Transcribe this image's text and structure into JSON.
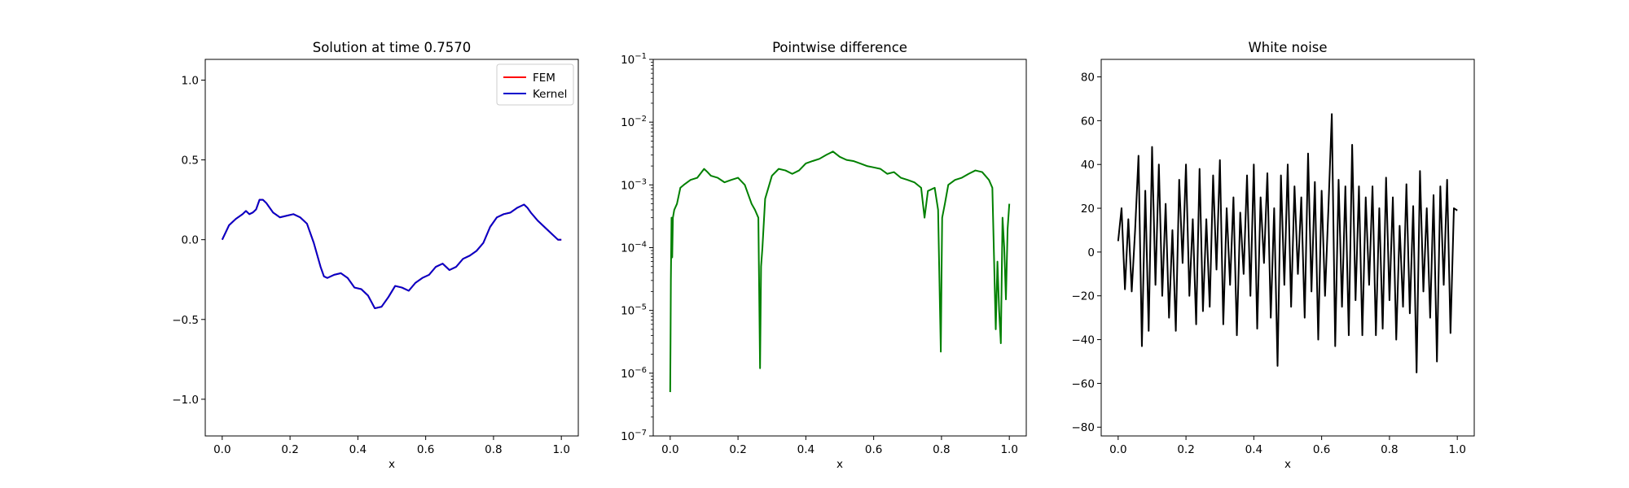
{
  "chart_data": [
    {
      "type": "line",
      "title": "Solution at time 0.7570",
      "xlabel": "x",
      "ylabel": "",
      "xlim": [
        -0.05,
        1.05
      ],
      "ylim": [
        -1.23,
        1.13
      ],
      "xticks": [
        0.0,
        0.2,
        0.4,
        0.6,
        0.8,
        1.0
      ],
      "xtick_labels": [
        "0.0",
        "0.2",
        "0.4",
        "0.6",
        "0.8",
        "1.0"
      ],
      "yticks": [
        -1.0,
        -0.5,
        0.0,
        0.5,
        1.0
      ],
      "ytick_labels": [
        "−1.0",
        "−0.5",
        "0.0",
        "0.5",
        "1.0"
      ],
      "legend_position": "top-right",
      "series": [
        {
          "name": "FEM",
          "color": "#ff0000",
          "x": [
            0.0,
            0.02,
            0.04,
            0.06,
            0.07,
            0.08,
            0.09,
            0.1,
            0.11,
            0.12,
            0.13,
            0.15,
            0.17,
            0.19,
            0.21,
            0.23,
            0.25,
            0.27,
            0.29,
            0.3,
            0.31,
            0.33,
            0.35,
            0.37,
            0.39,
            0.41,
            0.43,
            0.45,
            0.47,
            0.49,
            0.51,
            0.53,
            0.55,
            0.57,
            0.59,
            0.61,
            0.63,
            0.65,
            0.67,
            0.69,
            0.71,
            0.73,
            0.75,
            0.77,
            0.79,
            0.81,
            0.83,
            0.85,
            0.87,
            0.88,
            0.89,
            0.9,
            0.91,
            0.93,
            0.95,
            0.97,
            0.99,
            1.0
          ],
          "y": [
            0.0,
            0.09,
            0.13,
            0.16,
            0.18,
            0.16,
            0.17,
            0.19,
            0.25,
            0.25,
            0.23,
            0.17,
            0.14,
            0.15,
            0.16,
            0.14,
            0.1,
            -0.02,
            -0.17,
            -0.23,
            -0.24,
            -0.22,
            -0.21,
            -0.24,
            -0.3,
            -0.31,
            -0.35,
            -0.43,
            -0.42,
            -0.36,
            -0.29,
            -0.3,
            -0.32,
            -0.27,
            -0.24,
            -0.22,
            -0.17,
            -0.15,
            -0.19,
            -0.17,
            -0.12,
            -0.1,
            -0.07,
            -0.02,
            0.08,
            0.14,
            0.16,
            0.17,
            0.2,
            0.21,
            0.22,
            0.2,
            0.17,
            0.12,
            0.08,
            0.04,
            0.0,
            0.0
          ]
        },
        {
          "name": "Kernel",
          "color": "#0000cc",
          "x": [
            0.0,
            0.02,
            0.04,
            0.06,
            0.07,
            0.08,
            0.09,
            0.1,
            0.11,
            0.12,
            0.13,
            0.15,
            0.17,
            0.19,
            0.21,
            0.23,
            0.25,
            0.27,
            0.29,
            0.3,
            0.31,
            0.33,
            0.35,
            0.37,
            0.39,
            0.41,
            0.43,
            0.45,
            0.47,
            0.49,
            0.51,
            0.53,
            0.55,
            0.57,
            0.59,
            0.61,
            0.63,
            0.65,
            0.67,
            0.69,
            0.71,
            0.73,
            0.75,
            0.77,
            0.79,
            0.81,
            0.83,
            0.85,
            0.87,
            0.88,
            0.89,
            0.9,
            0.91,
            0.93,
            0.95,
            0.97,
            0.99,
            1.0
          ],
          "y": [
            0.0,
            0.09,
            0.13,
            0.16,
            0.18,
            0.16,
            0.17,
            0.19,
            0.25,
            0.25,
            0.23,
            0.17,
            0.14,
            0.15,
            0.16,
            0.14,
            0.1,
            -0.02,
            -0.17,
            -0.23,
            -0.24,
            -0.22,
            -0.21,
            -0.24,
            -0.3,
            -0.31,
            -0.35,
            -0.43,
            -0.42,
            -0.36,
            -0.29,
            -0.3,
            -0.32,
            -0.27,
            -0.24,
            -0.22,
            -0.17,
            -0.15,
            -0.19,
            -0.17,
            -0.12,
            -0.1,
            -0.07,
            -0.02,
            0.08,
            0.14,
            0.16,
            0.17,
            0.2,
            0.21,
            0.22,
            0.2,
            0.17,
            0.12,
            0.08,
            0.04,
            0.0,
            0.0
          ]
        }
      ]
    },
    {
      "type": "line",
      "title": "Pointwise difference",
      "xlabel": "x",
      "ylabel": "",
      "xlim": [
        -0.05,
        1.05
      ],
      "ylim": [
        1e-07,
        0.1
      ],
      "yscale": "log",
      "xticks": [
        0.0,
        0.2,
        0.4,
        0.6,
        0.8,
        1.0
      ],
      "xtick_labels": [
        "0.0",
        "0.2",
        "0.4",
        "0.6",
        "0.8",
        "1.0"
      ],
      "yticks": [
        1e-07,
        1e-06,
        1e-05,
        0.0001,
        0.001,
        0.01,
        0.1
      ],
      "ytick_labels": [
        {
          "base": "10",
          "exp": "−7"
        },
        {
          "base": "10",
          "exp": "−6"
        },
        {
          "base": "10",
          "exp": "−5"
        },
        {
          "base": "10",
          "exp": "−4"
        },
        {
          "base": "10",
          "exp": "−3"
        },
        {
          "base": "10",
          "exp": "−2"
        },
        {
          "base": "10",
          "exp": "−1"
        }
      ],
      "series": [
        {
          "color": "#008000",
          "x": [
            0.0,
            0.001,
            0.002,
            0.004,
            0.006,
            0.008,
            0.012,
            0.02,
            0.03,
            0.04,
            0.06,
            0.08,
            0.1,
            0.11,
            0.12,
            0.14,
            0.16,
            0.18,
            0.2,
            0.22,
            0.24,
            0.25,
            0.26,
            0.265,
            0.268,
            0.272,
            0.28,
            0.3,
            0.32,
            0.34,
            0.36,
            0.38,
            0.4,
            0.42,
            0.44,
            0.46,
            0.48,
            0.5,
            0.52,
            0.54,
            0.56,
            0.58,
            0.6,
            0.62,
            0.64,
            0.66,
            0.68,
            0.7,
            0.72,
            0.74,
            0.75,
            0.76,
            0.78,
            0.79,
            0.798,
            0.8,
            0.802,
            0.81,
            0.82,
            0.84,
            0.86,
            0.88,
            0.9,
            0.92,
            0.94,
            0.95,
            0.96,
            0.965,
            0.97,
            0.975,
            0.98,
            0.985,
            0.99,
            0.995,
            1.0
          ],
          "y": [
            5e-07,
            3e-06,
            3e-05,
            0.0003,
            7e-05,
            0.0003,
            0.0004,
            0.0005,
            0.0009,
            0.001,
            0.0012,
            0.0013,
            0.0018,
            0.0016,
            0.0014,
            0.0013,
            0.0011,
            0.0012,
            0.0013,
            0.001,
            0.0005,
            0.0004,
            0.0003,
            1.2e-06,
            5e-05,
            0.0001,
            0.0006,
            0.0014,
            0.0018,
            0.0017,
            0.0015,
            0.0017,
            0.0022,
            0.0024,
            0.0026,
            0.003,
            0.0034,
            0.0028,
            0.0025,
            0.0024,
            0.0022,
            0.002,
            0.0019,
            0.0018,
            0.0015,
            0.0016,
            0.0013,
            0.0012,
            0.0011,
            0.0009,
            0.0003,
            0.0008,
            0.0009,
            0.0004,
            2.2e-06,
            3e-05,
            0.0003,
            0.0005,
            0.001,
            0.0012,
            0.0013,
            0.0015,
            0.0017,
            0.0016,
            0.0012,
            0.0009,
            5e-06,
            6e-05,
            1e-05,
            3e-06,
            0.0003,
            0.0001,
            1.5e-05,
            0.0002,
            0.0005
          ]
        }
      ]
    },
    {
      "type": "line",
      "title": "White noise",
      "xlabel": "x",
      "ylabel": "",
      "xlim": [
        -0.05,
        1.05
      ],
      "ylim": [
        -84,
        88
      ],
      "xticks": [
        0.0,
        0.2,
        0.4,
        0.6,
        0.8,
        1.0
      ],
      "xtick_labels": [
        "0.0",
        "0.2",
        "0.4",
        "0.6",
        "0.8",
        "1.0"
      ],
      "yticks": [
        -80,
        -60,
        -40,
        -20,
        0,
        20,
        40,
        60,
        80
      ],
      "ytick_labels": [
        "−80",
        "−60",
        "−40",
        "−20",
        "0",
        "20",
        "40",
        "60",
        "80"
      ],
      "series": [
        {
          "color": "#000000",
          "x": [
            0.0,
            0.01,
            0.02,
            0.03,
            0.04,
            0.05,
            0.06,
            0.07,
            0.08,
            0.09,
            0.1,
            0.11,
            0.12,
            0.13,
            0.14,
            0.15,
            0.16,
            0.17,
            0.18,
            0.19,
            0.2,
            0.21,
            0.22,
            0.23,
            0.24,
            0.25,
            0.26,
            0.27,
            0.28,
            0.29,
            0.3,
            0.31,
            0.32,
            0.33,
            0.34,
            0.35,
            0.36,
            0.37,
            0.38,
            0.39,
            0.4,
            0.41,
            0.42,
            0.43,
            0.44,
            0.45,
            0.46,
            0.47,
            0.48,
            0.49,
            0.5,
            0.51,
            0.52,
            0.53,
            0.54,
            0.55,
            0.56,
            0.57,
            0.58,
            0.59,
            0.6,
            0.61,
            0.62,
            0.63,
            0.64,
            0.65,
            0.66,
            0.67,
            0.68,
            0.69,
            0.7,
            0.71,
            0.72,
            0.73,
            0.74,
            0.75,
            0.76,
            0.77,
            0.78,
            0.79,
            0.8,
            0.81,
            0.82,
            0.83,
            0.84,
            0.85,
            0.86,
            0.87,
            0.88,
            0.89,
            0.9,
            0.91,
            0.92,
            0.93,
            0.94,
            0.95,
            0.96,
            0.97,
            0.98,
            0.99,
            1.0
          ],
          "y": [
            5,
            20,
            -17,
            15,
            -18,
            10,
            44,
            -43,
            28,
            -36,
            48,
            -15,
            40,
            -20,
            22,
            -30,
            10,
            -36,
            33,
            -5,
            40,
            -20,
            15,
            -33,
            38,
            -27,
            15,
            -25,
            35,
            -8,
            42,
            -33,
            20,
            -15,
            25,
            -38,
            18,
            -10,
            35,
            -20,
            40,
            -35,
            25,
            -5,
            36,
            -30,
            20,
            -52,
            35,
            -15,
            40,
            -25,
            30,
            -10,
            25,
            -30,
            45,
            -18,
            32,
            -40,
            28,
            -20,
            20,
            63,
            -43,
            33,
            -25,
            30,
            -38,
            49,
            -22,
            30,
            -38,
            25,
            -15,
            30,
            -38,
            20,
            -35,
            34,
            -22,
            25,
            -40,
            12,
            -25,
            31,
            -28,
            21,
            -55,
            37,
            -18,
            20,
            -30,
            26,
            -50,
            30,
            -15,
            33,
            -37,
            20,
            19
          ]
        }
      ]
    }
  ]
}
